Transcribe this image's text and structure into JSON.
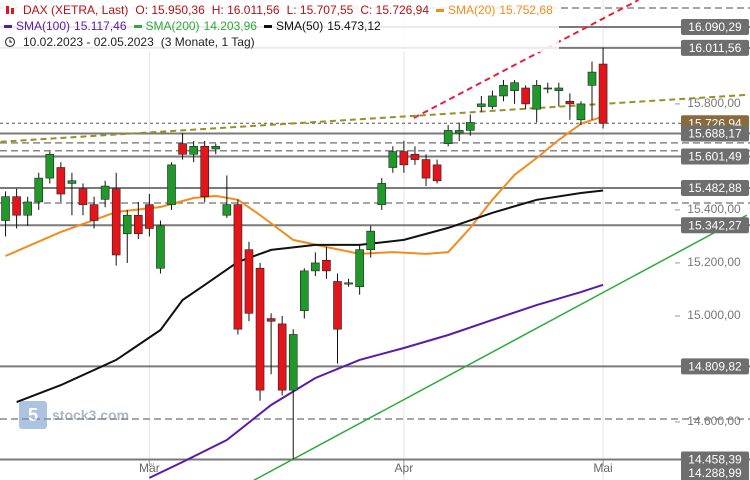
{
  "chart_data": {
    "type": "candlestick",
    "title": "DAX (XETRA, Last)",
    "ohlc_labels": [
      "O: 15.950,36",
      "H: 16.011,56",
      "L: 15.707,55",
      "C: 15.726,94"
    ],
    "period": "10.02.2023 - 02.05.2023",
    "interval": "(3 Monate, 1 Tag)",
    "watermark": "stock3.com",
    "up_color": "#1f9a2a",
    "down_color": "#e3151a",
    "open": [
      15360,
      15450,
      15380,
      15430,
      15520,
      15560,
      15500,
      15480,
      15420,
      15440,
      15480,
      15310,
      15380,
      15420,
      15180,
      15420,
      15650,
      15610,
      15640,
      15630,
      15380,
      15420,
      15250,
      15180,
      14990,
      14970,
      14720,
      15020,
      15170,
      15210,
      15130,
      15120,
      15110,
      15250,
      15420,
      15560,
      15620,
      15610,
      15590,
      15570,
      15650,
      15690,
      15700,
      15790,
      15790,
      15830,
      15850,
      15860,
      15780,
      15860,
      15850,
      15810,
      15740,
      15870,
      15950.36
    ],
    "high": [
      15470,
      15480,
      15450,
      15540,
      15620,
      15580,
      15540,
      15500,
      15450,
      15510,
      15540,
      15400,
      15430,
      15460,
      15360,
      15580,
      15690,
      15660,
      15660,
      15650,
      15530,
      15440,
      15280,
      15200,
      15010,
      15000,
      14950,
      15180,
      15240,
      15260,
      15160,
      15140,
      15270,
      15340,
      15520,
      15640,
      15660,
      15640,
      15610,
      15590,
      15720,
      15730,
      15760,
      15830,
      15850,
      15890,
      15890,
      15870,
      15890,
      15880,
      15880,
      15840,
      15810,
      15960,
      16011.56
    ],
    "low": [
      15300,
      15330,
      15340,
      15400,
      15500,
      15430,
      15380,
      15380,
      15330,
      15410,
      15190,
      15200,
      15290,
      15300,
      15160,
      15400,
      15590,
      15580,
      15430,
      15610,
      15370,
      14930,
      14980,
      14680,
      14780,
      14700,
      14458.39,
      14990,
      15150,
      15140,
      14820,
      15110,
      15080,
      15220,
      15400,
      15540,
      15540,
      15570,
      15490,
      15500,
      15640,
      15660,
      15680,
      15770,
      15780,
      15810,
      15800,
      15780,
      15730,
      15840,
      15790,
      15740,
      15720,
      15740,
      15707.55
    ],
    "close": [
      15450,
      15380,
      15430,
      15520,
      15610,
      15460,
      15510,
      15420,
      15360,
      15490,
      15230,
      15380,
      15310,
      15330,
      15340,
      15570,
      15610,
      15640,
      15450,
      15640,
      15420,
      14950,
      15010,
      14720,
      14980,
      14720,
      14930,
      15170,
      15200,
      15170,
      14950,
      15125,
      15250,
      15320,
      15500,
      15620,
      15570,
      15590,
      15520,
      15510,
      15700,
      15700,
      15730,
      15800,
      15830,
      15870,
      15880,
      15800,
      15870,
      15860,
      15860,
      15800,
      15800,
      15920,
      15726.94
    ],
    "overlays": [
      {
        "name": "SMA(20)",
        "last_label": "15.752,68",
        "color": "#f28c1c",
        "width": 2,
        "x": [
          0,
          5,
          10,
          14,
          17,
          19,
          21,
          23,
          26,
          29,
          32,
          35,
          38,
          40,
          42,
          44,
          46,
          48,
          50,
          52,
          54
        ],
        "values": [
          15226,
          15317,
          15392,
          15411,
          15445,
          15453,
          15438,
          15381,
          15287,
          15260,
          15234,
          15241,
          15234,
          15241,
          15332,
          15438,
          15532,
          15596,
          15664,
          15725,
          15752.68
        ]
      },
      {
        "name": "SMA(100)",
        "last_label": "15.117,46",
        "color": "#5a1aa8",
        "width": 2,
        "x": [
          13,
          16,
          20,
          24,
          28,
          32,
          36,
          40,
          44,
          48,
          52,
          54
        ],
        "values": [
          14389,
          14449,
          14532,
          14664,
          14766,
          14834,
          14879,
          14928,
          14985,
          15041,
          15090,
          15117.46
        ]
      },
      {
        "name": "SMA(200)",
        "last_label": "14.203,96",
        "color": "#2eaa3a",
        "width": 1.5,
        "x": [
          22,
          67
        ],
        "values": [
          14370,
          15380
        ]
      },
      {
        "name": "SMA(50)",
        "last_label": "15.473,12",
        "color": "#111111",
        "width": 2,
        "x": [
          1,
          5,
          10,
          14,
          16,
          18,
          21,
          24,
          28,
          32,
          36,
          40,
          44,
          48,
          52,
          54
        ],
        "values": [
          14675,
          14739,
          14834,
          14947,
          15060,
          15117,
          15204,
          15249,
          15268,
          15268,
          15287,
          15332,
          15389,
          15438,
          15464,
          15473.12
        ]
      }
    ],
    "trendlines": [
      {
        "color": "#e8203a",
        "x": [
          36.9,
          57.2
        ],
        "values": [
          15747,
          16192
        ]
      },
      {
        "color": "#9a9020",
        "x": [
          -0.45,
          67
        ],
        "values": [
          15657,
          15834
        ]
      }
    ],
    "levels": [
      {
        "value": 16090.29,
        "label": "16.090,29"
      },
      {
        "value": 16011.56,
        "label": "16.011,56"
      },
      {
        "value": 15688.17,
        "label": "15.688,17"
      },
      {
        "value": 15601.49,
        "label": "15.601,49"
      },
      {
        "value": 15482.88,
        "label": "15.482,88"
      },
      {
        "value": 15342.27,
        "label": "15.342,27"
      },
      {
        "value": 14809.82,
        "label": "14.809,82"
      },
      {
        "value": 14458.39,
        "label": "14.458,39"
      },
      {
        "value": 14288.99,
        "label": "14.288,99"
      }
    ],
    "price_level": {
      "value": 15726.94,
      "label": "15.726,94"
    },
    "dashed_levels": [
      16162,
      15653,
      15623,
      15426,
      14611
    ],
    "xlim": [
      -0.5,
      60.5
    ],
    "ylim": [
      14381,
      16192
    ],
    "yticks": [
      {
        "value": 15800,
        "label": "15.800,00"
      },
      {
        "value": 15400,
        "label": "15.400,00"
      },
      {
        "value": 15200,
        "label": "15.200,00"
      },
      {
        "value": 15000,
        "label": "15.000,00"
      },
      {
        "value": 14600,
        "label": "14.600,00"
      }
    ],
    "xticks": [
      {
        "value": 13,
        "label": "Mär"
      },
      {
        "value": 36,
        "label": "Apr"
      },
      {
        "value": 54,
        "label": "Mai"
      }
    ]
  }
}
